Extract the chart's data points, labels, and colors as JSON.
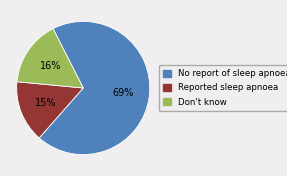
{
  "slices": [
    69,
    15,
    16
  ],
  "labels": [
    "No report of sleep apnoea",
    "Reported sleep apnoea",
    "Don't know"
  ],
  "colors": [
    "#4f81bd",
    "#943634",
    "#9bbb59"
  ],
  "pct_labels": [
    "69%",
    "15%",
    "16%"
  ],
  "startangle": 117,
  "legend_fontsize": 6.2,
  "pct_fontsize": 7,
  "background_color": "#f0eeee"
}
